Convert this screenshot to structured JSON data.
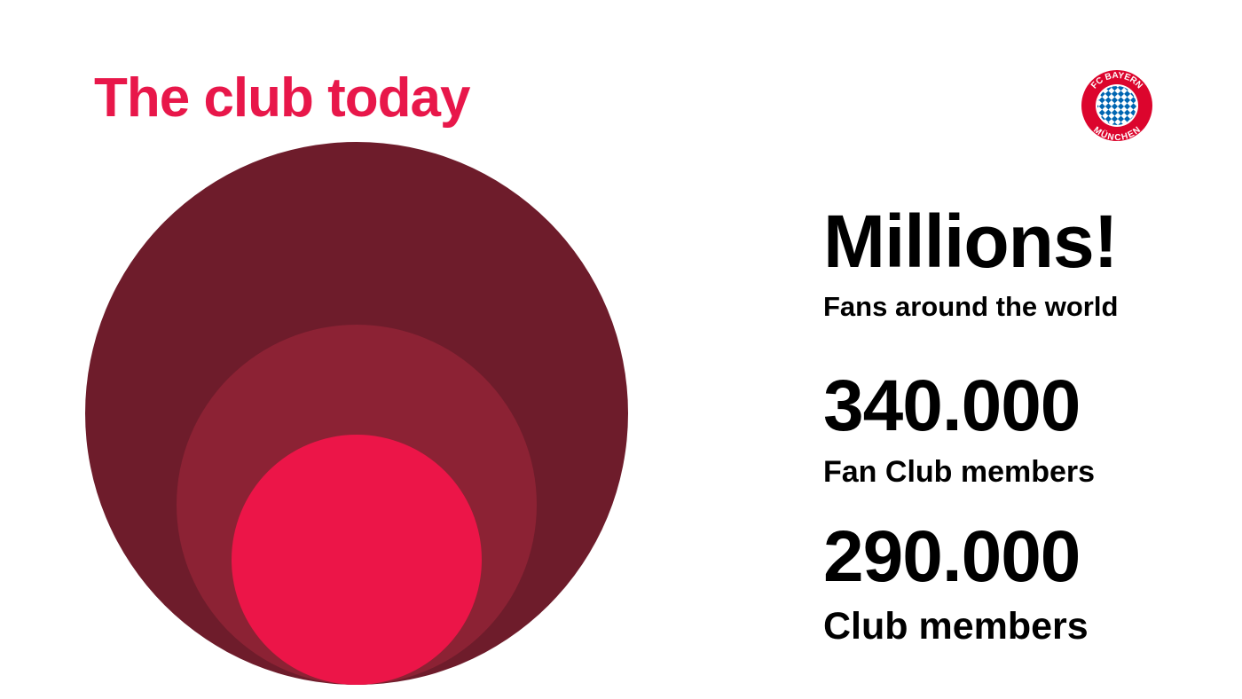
{
  "title": "The club today",
  "colors": {
    "title": "#e8174a",
    "outer_circle": "#6e1c2b",
    "middle_circle": "#8c2234",
    "inner_circle": "#ec1548",
    "logo_red": "#dc052d",
    "logo_blue": "#0066b2"
  },
  "logo": {
    "text_top": "FC BAYERN",
    "text_bottom": "MÜNCHEN"
  },
  "stats": [
    {
      "value": "Millions!",
      "label": "Fans around the world"
    },
    {
      "value": "340.000",
      "label": "Fan Club members"
    },
    {
      "value": "290.000",
      "label": "Club members"
    }
  ]
}
